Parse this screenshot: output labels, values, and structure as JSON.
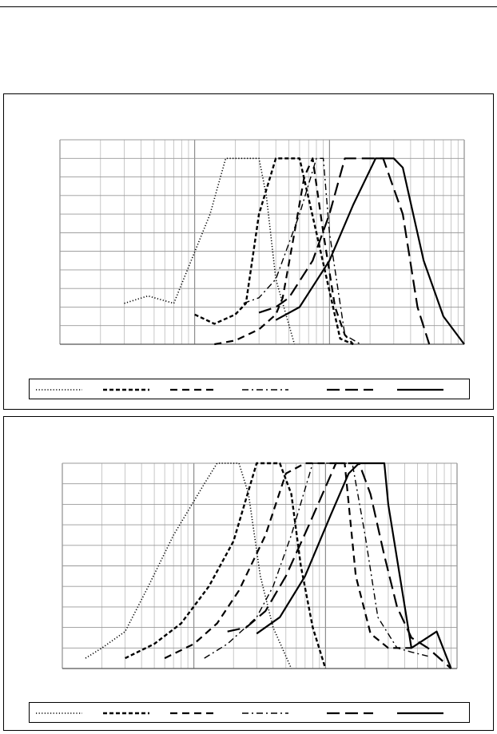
{
  "chart_data": [
    {
      "type": "line",
      "title": "",
      "xscale": "log",
      "xlim": [
        0.1,
        100
      ],
      "ylim": [
        0,
        110
      ],
      "grid": true,
      "legend": "bottom",
      "series": [
        {
          "style": "dotted",
          "points": [
            [
              0.3,
              22
            ],
            [
              0.45,
              26
            ],
            [
              0.7,
              22
            ],
            [
              1.3,
              70
            ],
            [
              1.7,
              100
            ],
            [
              3.0,
              100
            ],
            [
              3.4,
              80
            ],
            [
              4.0,
              35
            ],
            [
              5.5,
              0
            ]
          ]
        },
        {
          "style": "dashed-short",
          "points": [
            [
              1.0,
              16
            ],
            [
              1.4,
              11
            ],
            [
              2.0,
              16
            ],
            [
              2.4,
              22
            ],
            [
              3.0,
              70
            ],
            [
              4.0,
              100
            ],
            [
              5.0,
              100
            ],
            [
              6.0,
              100
            ],
            [
              8.0,
              60
            ],
            [
              12.0,
              3
            ],
            [
              15.0,
              0
            ]
          ]
        },
        {
          "style": "dashed-medium",
          "points": [
            [
              1.4,
              0
            ],
            [
              2.0,
              2
            ],
            [
              3.0,
              8
            ],
            [
              4.0,
              16
            ],
            [
              4.5,
              25
            ],
            [
              5.5,
              60
            ],
            [
              6.5,
              90
            ],
            [
              7.5,
              100
            ],
            [
              9.0,
              60
            ],
            [
              11.0,
              20
            ],
            [
              13.0,
              5
            ],
            [
              15.0,
              0
            ]
          ]
        },
        {
          "style": "dash-dot",
          "points": [
            [
              2.3,
              22
            ],
            [
              3.0,
              25
            ],
            [
              4.0,
              35
            ],
            [
              6.0,
              70
            ],
            [
              8.0,
              100
            ],
            [
              9.0,
              100
            ],
            [
              10.0,
              60
            ],
            [
              13.0,
              5
            ],
            [
              17.0,
              0
            ]
          ]
        },
        {
          "style": "dashed-long",
          "points": [
            [
              3.0,
              17
            ],
            [
              4.0,
              20
            ],
            [
              5.0,
              25
            ],
            [
              7.5,
              45
            ],
            [
              10.0,
              70
            ],
            [
              13.0,
              100
            ],
            [
              15.0,
              100
            ],
            [
              25.0,
              100
            ],
            [
              35.0,
              70
            ],
            [
              45.0,
              20
            ],
            [
              55.0,
              0
            ]
          ]
        },
        {
          "style": "solid",
          "points": [
            [
              4.0,
              13
            ],
            [
              6.0,
              20
            ],
            [
              10.0,
              45
            ],
            [
              15.0,
              75
            ],
            [
              22.0,
              100
            ],
            [
              30.0,
              100
            ],
            [
              35.0,
              95
            ],
            [
              50.0,
              45
            ],
            [
              70.0,
              15
            ],
            [
              100.0,
              0
            ]
          ]
        }
      ]
    },
    {
      "type": "line",
      "title": "",
      "xscale": "log",
      "xlim": [
        0.1,
        100
      ],
      "ylim": [
        0,
        100
      ],
      "grid": true,
      "legend": "bottom",
      "series": [
        {
          "style": "dotted",
          "points": [
            [
              0.15,
              5
            ],
            [
              0.2,
              10
            ],
            [
              0.3,
              18
            ],
            [
              0.45,
              40
            ],
            [
              0.7,
              65
            ],
            [
              1.2,
              90
            ],
            [
              1.5,
              100
            ],
            [
              2.2,
              100
            ],
            [
              2.6,
              85
            ],
            [
              3.2,
              45
            ],
            [
              4.0,
              20
            ],
            [
              5.5,
              0
            ]
          ]
        },
        {
          "style": "dashed-short",
          "points": [
            [
              0.3,
              5
            ],
            [
              0.5,
              12
            ],
            [
              0.8,
              22
            ],
            [
              1.3,
              40
            ],
            [
              2.0,
              62
            ],
            [
              3.0,
              100
            ],
            [
              4.5,
              100
            ],
            [
              5.5,
              85
            ],
            [
              6.5,
              50
            ],
            [
              8.0,
              20
            ],
            [
              10.0,
              0
            ]
          ]
        },
        {
          "style": "dashed-medium",
          "points": [
            [
              0.6,
              5
            ],
            [
              1.0,
              12
            ],
            [
              1.5,
              22
            ],
            [
              2.2,
              38
            ],
            [
              3.5,
              65
            ],
            [
              5.0,
              95
            ],
            [
              7.0,
              100
            ],
            [
              10.0,
              100
            ],
            [
              14.0,
              100
            ],
            [
              17.0,
              45
            ],
            [
              22.0,
              17
            ],
            [
              30.0,
              10
            ],
            [
              45.0,
              10
            ]
          ]
        },
        {
          "style": "dash-dot",
          "points": [
            [
              1.2,
              5
            ],
            [
              1.8,
              12
            ],
            [
              3.0,
              25
            ],
            [
              4.0,
              40
            ],
            [
              5.5,
              65
            ],
            [
              8.0,
              100
            ],
            [
              12.0,
              100
            ],
            [
              16.0,
              100
            ],
            [
              20.0,
              65
            ],
            [
              25.0,
              25
            ],
            [
              35.0,
              10
            ],
            [
              45.0,
              8
            ],
            [
              60.0,
              6
            ]
          ]
        },
        {
          "style": "dashed-long",
          "points": [
            [
              1.8,
              18
            ],
            [
              2.5,
              20
            ],
            [
              3.5,
              28
            ],
            [
              5.0,
              45
            ],
            [
              7.5,
              70
            ],
            [
              12.0,
              100
            ],
            [
              18.0,
              100
            ],
            [
              22.0,
              85
            ],
            [
              28.0,
              55
            ],
            [
              35.0,
              30
            ],
            [
              45.0,
              15
            ],
            [
              60.0,
              10
            ],
            [
              90.0,
              0
            ]
          ]
        },
        {
          "style": "solid",
          "points": [
            [
              3.0,
              17
            ],
            [
              4.5,
              25
            ],
            [
              7.0,
              45
            ],
            [
              11.0,
              75
            ],
            [
              15.0,
              95
            ],
            [
              18.0,
              100
            ],
            [
              28.0,
              100
            ],
            [
              30.0,
              80
            ],
            [
              45.0,
              10
            ],
            [
              70.0,
              18
            ],
            [
              90.0,
              0
            ]
          ]
        }
      ]
    }
  ]
}
